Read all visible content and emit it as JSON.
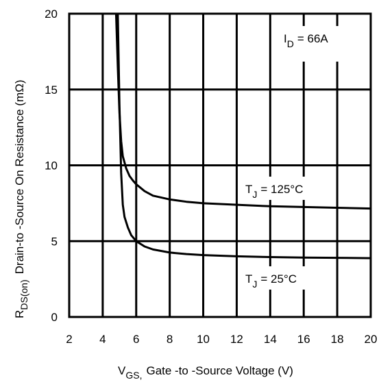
{
  "chart_data": {
    "type": "line",
    "xlabel": "V",
    "xlabel_sub": "GS,",
    "xlabel_rest": "Gate -to -Source Voltage  (V)",
    "ylabel": "R",
    "ylabel_sub": "DS(on)",
    "ylabel_rest": "Drain-to -Source On Resistance (mΩ)",
    "xlim": [
      2,
      20
    ],
    "ylim": [
      0,
      20
    ],
    "xticks": [
      "2",
      "4",
      "6",
      "8",
      "10",
      "12",
      "14",
      "16",
      "18",
      "20"
    ],
    "yticks": [
      "0",
      "5",
      "10",
      "15",
      "20"
    ],
    "grid": true,
    "annotation": {
      "main": "I",
      "sub": "D",
      "rest": "= 66A"
    },
    "series": [
      {
        "name": "T J = 125°C",
        "label_main": "T",
        "label_sub": "J",
        "label_rest": "= 125°C",
        "x": [
          4.8,
          4.9,
          5.0,
          5.1,
          5.2,
          5.4,
          5.6,
          5.8,
          6.0,
          6.5,
          7.0,
          8.0,
          9.0,
          10.0,
          12.0,
          14.0,
          16.0,
          18.0,
          20.0
        ],
        "y": [
          20.0,
          16.5,
          13.5,
          11.6,
          10.6,
          9.8,
          9.3,
          9.0,
          8.75,
          8.3,
          8.0,
          7.75,
          7.6,
          7.5,
          7.4,
          7.3,
          7.25,
          7.2,
          7.15
        ]
      },
      {
        "name": "T J = 25°C",
        "label_main": "T",
        "label_sub": "J",
        "label_rest": "= 25°C",
        "x": [
          4.9,
          5.0,
          5.1,
          5.2,
          5.3,
          5.5,
          5.7,
          6.0,
          6.5,
          7.0,
          8.0,
          9.0,
          10.0,
          12.0,
          14.0,
          16.0,
          18.0,
          20.0
        ],
        "y": [
          20.0,
          14.0,
          9.5,
          7.4,
          6.6,
          5.9,
          5.4,
          5.0,
          4.65,
          4.45,
          4.25,
          4.15,
          4.08,
          4.0,
          3.95,
          3.92,
          3.9,
          3.88
        ]
      }
    ]
  }
}
